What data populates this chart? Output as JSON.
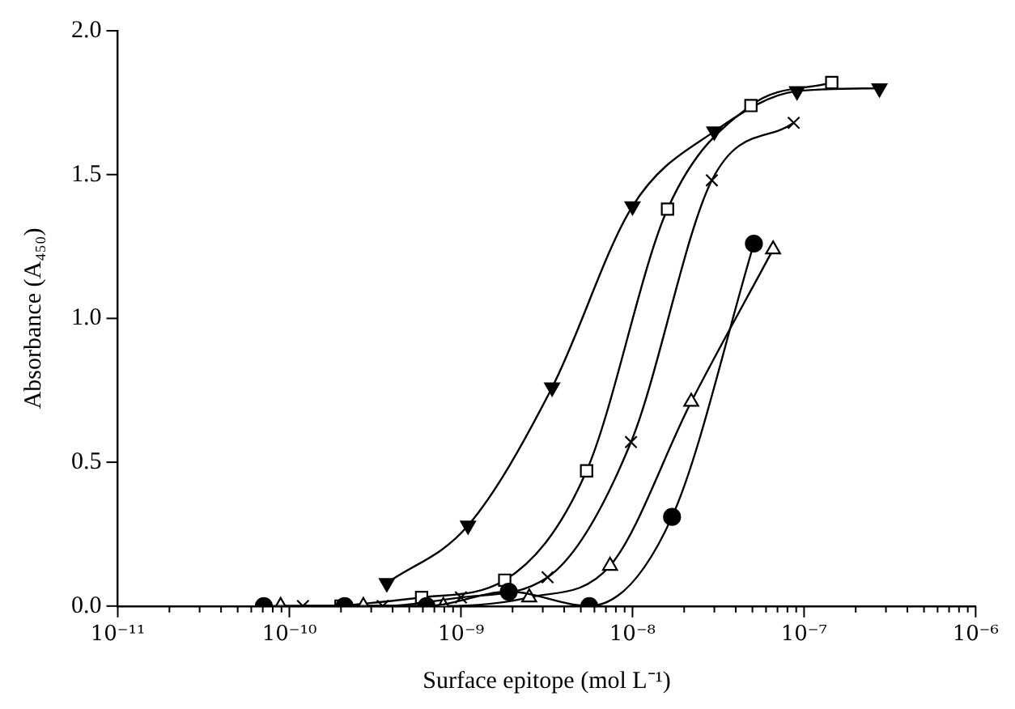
{
  "chart_data": {
    "type": "line",
    "xlabel": "Surface epitope (mol L⁻¹)",
    "ylabel": "Absorbance (A₄₅₀)",
    "log": "x",
    "xlim": [
      1e-11,
      1e-06
    ],
    "ylim": [
      0,
      2
    ],
    "xticks": [
      {
        "value": 1e-11,
        "label": "10⁻¹¹"
      },
      {
        "value": 2e-11,
        "label": null
      },
      {
        "value": 3e-11,
        "label": null
      },
      {
        "value": 4e-11,
        "label": null
      },
      {
        "value": 5e-11,
        "label": null
      },
      {
        "value": 6e-11,
        "label": null
      },
      {
        "value": 7e-11,
        "label": null
      },
      {
        "value": 8e-11,
        "label": null
      },
      {
        "value": 9e-11,
        "label": null
      },
      {
        "value": 1e-10,
        "label": "10⁻¹⁰"
      },
      {
        "value": 2e-10,
        "label": null
      },
      {
        "value": 3e-10,
        "label": null
      },
      {
        "value": 4e-10,
        "label": null
      },
      {
        "value": 5e-10,
        "label": null
      },
      {
        "value": 6e-10,
        "label": null
      },
      {
        "value": 7e-10,
        "label": null
      },
      {
        "value": 8e-10,
        "label": null
      },
      {
        "value": 9e-10,
        "label": null
      },
      {
        "value": 1e-09,
        "label": "10⁻⁹"
      },
      {
        "value": 2e-09,
        "label": null
      },
      {
        "value": 3e-09,
        "label": null
      },
      {
        "value": 4e-09,
        "label": null
      },
      {
        "value": 5e-09,
        "label": null
      },
      {
        "value": 6e-09,
        "label": null
      },
      {
        "value": 7e-09,
        "label": null
      },
      {
        "value": 8e-09,
        "label": null
      },
      {
        "value": 9e-09,
        "label": null
      },
      {
        "value": 1e-08,
        "label": "10⁻⁸"
      },
      {
        "value": 2e-08,
        "label": null
      },
      {
        "value": 3e-08,
        "label": null
      },
      {
        "value": 4e-08,
        "label": null
      },
      {
        "value": 5e-08,
        "label": null
      },
      {
        "value": 6e-08,
        "label": null
      },
      {
        "value": 7e-08,
        "label": null
      },
      {
        "value": 8e-08,
        "label": null
      },
      {
        "value": 9e-08,
        "label": null
      },
      {
        "value": 1e-07,
        "label": "10⁻⁷"
      },
      {
        "value": 2e-07,
        "label": null
      },
      {
        "value": 3e-07,
        "label": null
      },
      {
        "value": 4e-07,
        "label": null
      },
      {
        "value": 5e-07,
        "label": null
      },
      {
        "value": 6e-07,
        "label": null
      },
      {
        "value": 7e-07,
        "label": null
      },
      {
        "value": 8e-07,
        "label": null
      },
      {
        "value": 9e-07,
        "label": null
      },
      {
        "value": 1e-06,
        "label": "10⁻⁶"
      }
    ],
    "yticks": [
      {
        "value": 0,
        "label": "0.0"
      },
      {
        "value": 0.5,
        "label": "0.5"
      },
      {
        "value": 1,
        "label": "1.0"
      },
      {
        "value": 1.5,
        "label": "1.5"
      },
      {
        "value": 2,
        "label": "2.0"
      }
    ],
    "series": [
      {
        "color": "#000000",
        "marker": "circle",
        "x": [
          7.1e-11,
          2.1e-10,
          6.3e-10,
          1.9e-09,
          5.6e-09,
          1.7e-08,
          5.1e-08
        ],
        "values": [
          0,
          0,
          0,
          0.05,
          0,
          0.31,
          1.26
        ]
      },
      {
        "color": "#000000",
        "marker": "triangle",
        "x": [
          8.9e-11,
          2.7e-10,
          7.9e-10,
          2.5e-09,
          7.4e-09,
          2.2e-08,
          6.6e-08
        ],
        "values": [
          0,
          0,
          0,
          0.03,
          0.14,
          0.71,
          1.24
        ]
      },
      {
        "color": "#000000",
        "marker": "cross",
        "x": [
          1.2e-10,
          3.5e-10,
          1e-09,
          3.2e-09,
          9.8e-09,
          2.9e-08,
          8.7e-08
        ],
        "values": [
          0,
          0,
          0.03,
          0.1,
          0.57,
          1.48,
          1.68
        ]
      },
      {
        "color": "#000000",
        "marker": "square",
        "x": [
          2e-10,
          5.9e-10,
          1.8e-09,
          5.4e-09,
          1.6e-08,
          4.9e-08,
          1.45e-07
        ],
        "values": [
          0,
          0.03,
          0.09,
          0.47,
          1.38,
          1.74,
          1.82
        ]
      },
      {
        "color": "#000000",
        "marker": "triangle-down",
        "x": [
          3.7e-10,
          1.1e-09,
          3.4e-09,
          1e-08,
          3e-08,
          9.1e-08,
          2.75e-07
        ],
        "values": [
          0.08,
          0.28,
          0.76,
          1.39,
          1.65,
          1.79,
          1.8
        ]
      }
    ]
  }
}
